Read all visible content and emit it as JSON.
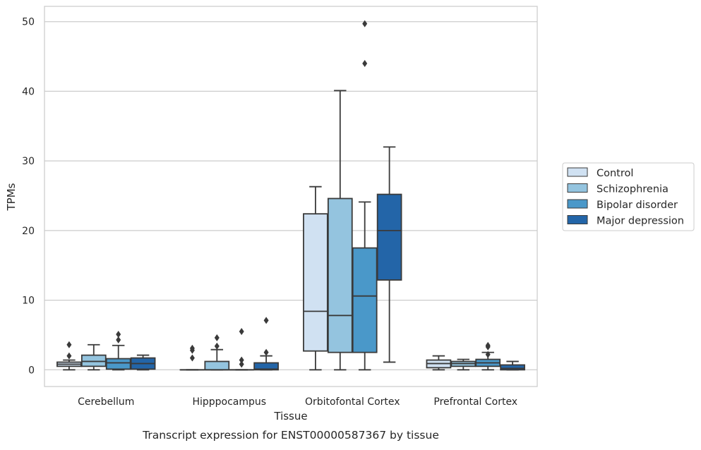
{
  "chart_data": {
    "type": "box",
    "title": "Transcript expression for ENST00000587367 by tissue",
    "xlabel": "Tissue",
    "ylabel": "TPMs",
    "ylim": [
      -2.4,
      52.2
    ],
    "yticks": [
      0,
      10,
      20,
      30,
      40,
      50
    ],
    "grid": "horizontal",
    "legend_position": "right",
    "categories": [
      "Cerebellum",
      "Hipppocampus",
      "Orbitofontal Cortex",
      "Prefrontal Cortex"
    ],
    "series": [
      {
        "name": "Control",
        "color": "#d0e1f2",
        "boxes": [
          {
            "whisker_low": 0,
            "q1": 0.5,
            "median": 0.8,
            "q3": 1.1,
            "whisker_high": 1.4,
            "outliers": [
              2.0,
              3.6
            ]
          },
          {
            "whisker_low": 0,
            "q1": 0,
            "median": 0,
            "q3": 0,
            "whisker_high": 0,
            "outliers": [
              1.7,
              2.8,
              3.1
            ]
          },
          {
            "whisker_low": 0,
            "q1": 2.7,
            "median": 8.4,
            "q3": 22.4,
            "whisker_high": 26.3,
            "outliers": []
          },
          {
            "whisker_low": 0,
            "q1": 0.3,
            "median": 0.9,
            "q3": 1.4,
            "whisker_high": 2.0,
            "outliers": []
          }
        ]
      },
      {
        "name": "Schizophrenia",
        "color": "#94c4df",
        "boxes": [
          {
            "whisker_low": 0,
            "q1": 0.5,
            "median": 1.2,
            "q3": 2.1,
            "whisker_high": 3.6,
            "outliers": []
          },
          {
            "whisker_low": 0,
            "q1": 0,
            "median": 0,
            "q3": 1.2,
            "whisker_high": 2.9,
            "outliers": [
              3.4,
              4.6
            ]
          },
          {
            "whisker_low": 0,
            "q1": 2.5,
            "median": 7.8,
            "q3": 24.6,
            "whisker_high": 40.1,
            "outliers": []
          },
          {
            "whisker_low": 0,
            "q1": 0.5,
            "median": 0.9,
            "q3": 1.2,
            "whisker_high": 1.5,
            "outliers": []
          }
        ]
      },
      {
        "name": "Bipolar disorder",
        "color": "#4a98c9",
        "boxes": [
          {
            "whisker_low": 0,
            "q1": 0.1,
            "median": 1.0,
            "q3": 1.6,
            "whisker_high": 3.5,
            "outliers": [
              4.3,
              5.1
            ]
          },
          {
            "whisker_low": 0,
            "q1": 0,
            "median": 0,
            "q3": 0,
            "whisker_high": 0,
            "outliers": [
              0.8,
              1.4,
              5.5
            ]
          },
          {
            "whisker_low": 0,
            "q1": 2.5,
            "median": 10.6,
            "q3": 17.5,
            "whisker_high": 24.1,
            "outliers": [
              44.0,
              49.7
            ]
          },
          {
            "whisker_low": 0,
            "q1": 0.5,
            "median": 1.0,
            "q3": 1.5,
            "whisker_high": 2.5,
            "outliers": [
              2.2,
              3.3,
              3.5
            ]
          }
        ]
      },
      {
        "name": "Major depression",
        "color": "#2365a8",
        "boxes": [
          {
            "whisker_low": 0,
            "q1": 0.1,
            "median": 0.9,
            "q3": 1.7,
            "whisker_high": 2.1,
            "outliers": []
          },
          {
            "whisker_low": 0,
            "q1": 0,
            "median": 0.1,
            "q3": 1.0,
            "whisker_high": 2.0,
            "outliers": [
              2.5,
              7.1
            ]
          },
          {
            "whisker_low": 1.1,
            "q1": 12.9,
            "median": 20.0,
            "q3": 25.2,
            "whisker_high": 32.0,
            "outliers": []
          },
          {
            "whisker_low": 0,
            "q1": 0,
            "median": 0.2,
            "q3": 0.7,
            "whisker_high": 1.2,
            "outliers": []
          }
        ]
      }
    ]
  }
}
